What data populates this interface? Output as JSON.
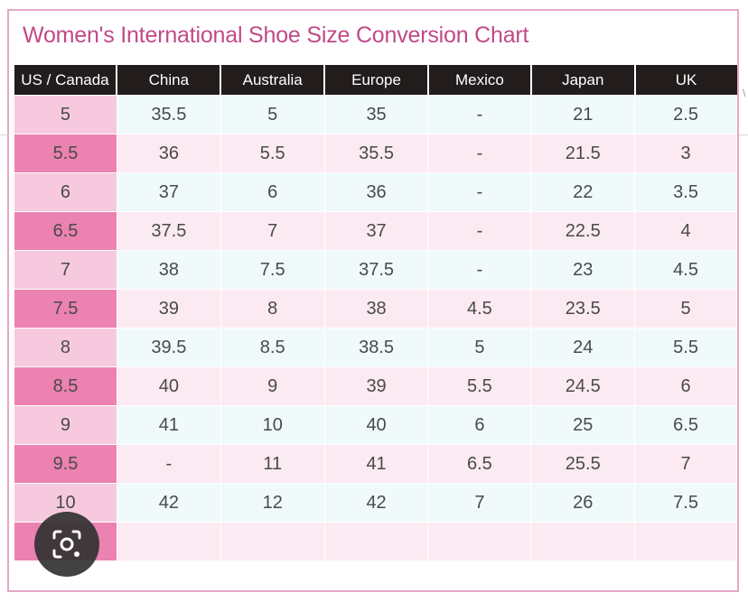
{
  "title": "Women's International Shoe Size Conversion Chart",
  "headers": [
    "US / Canada",
    "China",
    "Australia",
    "Europe",
    "Mexico",
    "Japan",
    "UK"
  ],
  "rows": [
    {
      "us": "5",
      "china": "35.5",
      "australia": "5",
      "europe": "35",
      "mexico": "-",
      "japan": "21",
      "uk": "2.5"
    },
    {
      "us": "5.5",
      "china": "36",
      "australia": "5.5",
      "europe": "35.5",
      "mexico": "-",
      "japan": "21.5",
      "uk": "3"
    },
    {
      "us": "6",
      "china": "37",
      "australia": "6",
      "europe": "36",
      "mexico": "-",
      "japan": "22",
      "uk": "3.5"
    },
    {
      "us": "6.5",
      "china": "37.5",
      "australia": "7",
      "europe": "37",
      "mexico": "-",
      "japan": "22.5",
      "uk": "4"
    },
    {
      "us": "7",
      "china": "38",
      "australia": "7.5",
      "europe": "37.5",
      "mexico": "-",
      "japan": "23",
      "uk": "4.5"
    },
    {
      "us": "7.5",
      "china": "39",
      "australia": "8",
      "europe": "38",
      "mexico": "4.5",
      "japan": "23.5",
      "uk": "5"
    },
    {
      "us": "8",
      "china": "39.5",
      "australia": "8.5",
      "europe": "38.5",
      "mexico": "5",
      "japan": "24",
      "uk": "5.5"
    },
    {
      "us": "8.5",
      "china": "40",
      "australia": "9",
      "europe": "39",
      "mexico": "5.5",
      "japan": "24.5",
      "uk": "6"
    },
    {
      "us": "9",
      "china": "41",
      "australia": "10",
      "europe": "40",
      "mexico": "6",
      "japan": "25",
      "uk": "6.5"
    },
    {
      "us": "9.5",
      "china": "-",
      "australia": "11",
      "europe": "41",
      "mexico": "6.5",
      "japan": "25.5",
      "uk": "7"
    },
    {
      "us": "10",
      "china": "42",
      "australia": "12",
      "europe": "42",
      "mexico": "7",
      "japan": "26",
      "uk": "7.5"
    },
    {
      "us": "",
      "china": "",
      "australia": "",
      "europe": "",
      "mexico": "",
      "japan": "",
      "uk": ""
    }
  ],
  "colors": {
    "title": "#c04a87",
    "frame_border": "#e3a8c6",
    "header_bg": "#221c1c",
    "us_col_light": "#f7c9de",
    "us_col_dark": "#ec82b1",
    "row_light": "#f0fafa",
    "row_pink": "#fceaf2"
  },
  "overlay": {
    "icon": "lens-search-icon"
  }
}
